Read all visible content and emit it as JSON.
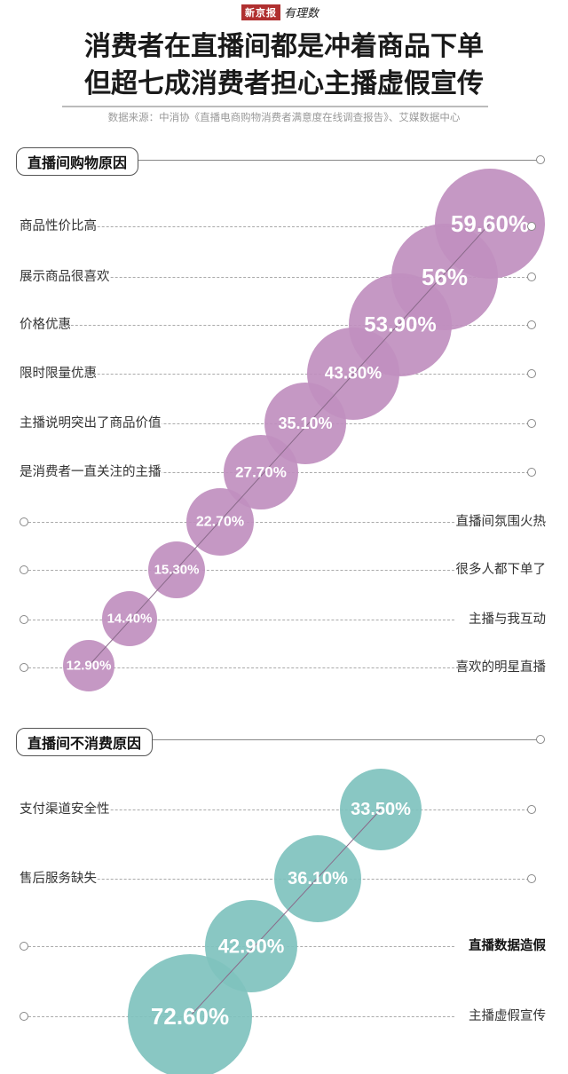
{
  "header": {
    "logo_box": "新京报",
    "logo_script": "有理数",
    "title_line1": "消费者在直播间都是冲着商品下单",
    "title_line2": "但超七成消费者担心主播虚假宣传",
    "source": "数据来源：中消协《直播电商购物消费者满意度在线调查报告》、艾媒数据中心"
  },
  "sections": {
    "buy": {
      "title": "直播间购物原因",
      "color": "#c08fbf",
      "items": [
        {
          "label": "商品性价比高",
          "value_label": "59.60%",
          "side": "left"
        },
        {
          "label": "展示商品很喜欢",
          "value_label": "56%",
          "side": "left"
        },
        {
          "label": "价格优惠",
          "value_label": "53.90%",
          "side": "left"
        },
        {
          "label": "限时限量优惠",
          "value_label": "43.80%",
          "side": "left"
        },
        {
          "label": "主播说明突出了商品价值",
          "value_label": "35.10%",
          "side": "left"
        },
        {
          "label": "是消费者一直关注的主播",
          "value_label": "27.70%",
          "side": "left"
        },
        {
          "label": "直播间氛围火热",
          "value_label": "22.70%",
          "side": "right"
        },
        {
          "label": "很多人都下单了",
          "value_label": "15.30%",
          "side": "right"
        },
        {
          "label": "主播与我互动",
          "value_label": "14.40%",
          "side": "right"
        },
        {
          "label": "喜欢的明星直播",
          "value_label": "12.90%",
          "side": "right"
        }
      ]
    },
    "nobuy": {
      "title": "直播间不消费原因",
      "color": "#7fc2be",
      "items": [
        {
          "label": "支付渠道安全性",
          "value_label": "33.50%",
          "side": "left"
        },
        {
          "label": "售后服务缺失",
          "value_label": "36.10%",
          "side": "left"
        },
        {
          "label": "直播数据造假",
          "value_label": "42.90%",
          "side": "right",
          "bold": true
        },
        {
          "label": "主播虚假宣传",
          "value_label": "72.60%",
          "side": "right"
        }
      ]
    }
  },
  "chart_data": [
    {
      "type": "bubble",
      "title": "直播间购物原因",
      "categories": [
        "商品性价比高",
        "展示商品很喜欢",
        "价格优惠",
        "限时限量优惠",
        "主播说明突出了商品价值",
        "是消费者一直关注的主播",
        "直播间氛围火热",
        "很多人都下单了",
        "主播与我互动",
        "喜欢的明星直播"
      ],
      "values": [
        59.6,
        56,
        53.9,
        43.8,
        35.1,
        27.7,
        22.7,
        15.3,
        14.4,
        12.9
      ],
      "unit": "%",
      "color": "#c08fbf"
    },
    {
      "type": "bubble",
      "title": "直播间不消费原因",
      "categories": [
        "支付渠道安全性",
        "售后服务缺失",
        "直播数据造假",
        "主播虚假宣传"
      ],
      "values": [
        33.5,
        36.1,
        42.9,
        72.6
      ],
      "unit": "%",
      "color": "#7fc2be"
    }
  ]
}
